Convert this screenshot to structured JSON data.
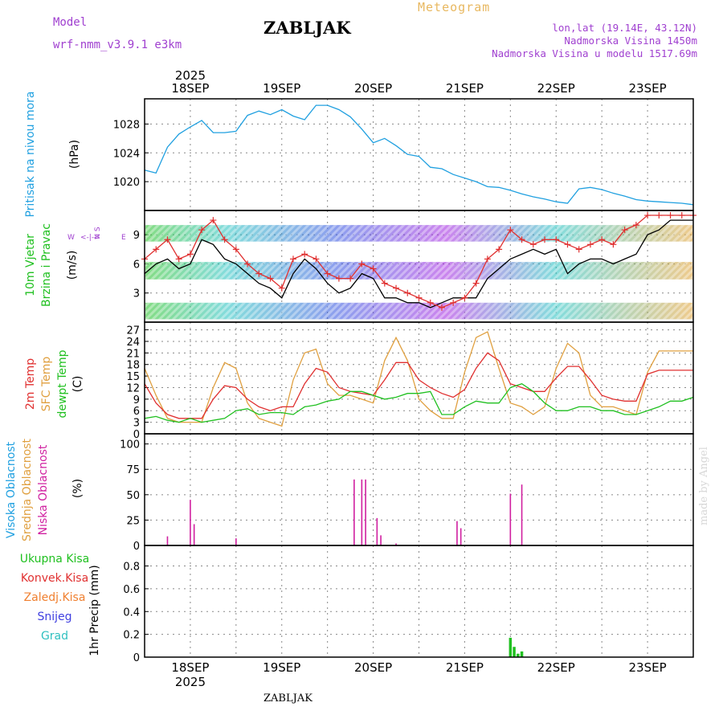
{
  "header": {
    "title": "ZABLJAK",
    "model_label": "Model",
    "model_name": "wrf-nmm_v3.9.1 e3km",
    "meteogram_label": "Meteogram",
    "location_coords": "lon,lat (19.14E, 43.12N)",
    "altitude": "Nadmorska Visina 1450m",
    "model_altitude": "Nadmorska Visina u modelu 1517.69m"
  },
  "footer": {
    "station": "ZABLJAK",
    "credit": "made by Angel"
  },
  "timeline": {
    "year": "2025",
    "days": [
      "18SEP",
      "19SEP",
      "20SEP",
      "21SEP",
      "22SEP",
      "23SEP"
    ],
    "start_hour_offset": -12,
    "end_hour_offset": 132
  },
  "chart_data": [
    {
      "type": "line",
      "name": "pressure",
      "ylabel_lines": [
        "Pritisak na nivou mora"
      ],
      "unit": "(hPa)",
      "yticks": [
        1020,
        1024,
        1028
      ],
      "ylim": [
        1016,
        1031.5
      ],
      "series": [
        {
          "name": "Pritisak na nivou mora",
          "color": "#20a0e0",
          "x": [
            -12,
            -9,
            -6,
            -3,
            0,
            3,
            6,
            9,
            12,
            15,
            18,
            21,
            24,
            27,
            30,
            33,
            36,
            39,
            42,
            45,
            48,
            51,
            54,
            57,
            60,
            63,
            66,
            69,
            72,
            75,
            78,
            81,
            84,
            87,
            90,
            93,
            96,
            99,
            102,
            105,
            108,
            111,
            114,
            117,
            120,
            123,
            126,
            129,
            132
          ],
          "y": [
            1021.6,
            1021.2,
            1024.8,
            1026.6,
            1027.6,
            1028.5,
            1026.8,
            1026.8,
            1027.0,
            1029.2,
            1029.8,
            1029.3,
            1030.0,
            1029.1,
            1028.6,
            1030.6,
            1030.6,
            1030.0,
            1029.0,
            1027.3,
            1025.4,
            1026.0,
            1025.0,
            1023.8,
            1023.5,
            1022.0,
            1021.8,
            1021.0,
            1020.5,
            1020.0,
            1019.3,
            1019.2,
            1018.8,
            1018.3,
            1017.9,
            1017.6,
            1017.2,
            1017.0,
            1019.0,
            1019.2,
            1018.9,
            1018.4,
            1018.0,
            1017.5,
            1017.3,
            1017.2,
            1017.1,
            1017.0,
            1016.8
          ]
        }
      ]
    },
    {
      "type": "line",
      "name": "wind",
      "ylabel_lines": [
        "10m Vjetar",
        "Brzina i Pravac"
      ],
      "unit": "(m/s)",
      "compass": {
        "w": "W",
        "e": "E",
        "arrow": "<-|->",
        "axis_letters": "N S"
      },
      "yticks": [
        3,
        6,
        9
      ],
      "ylim": [
        0,
        11.5
      ],
      "series": [
        {
          "name": "Brzina vjetra",
          "color": "#000000",
          "x": [
            -12,
            -9,
            -6,
            -3,
            0,
            3,
            6,
            9,
            12,
            15,
            18,
            21,
            24,
            27,
            30,
            33,
            36,
            39,
            42,
            45,
            48,
            51,
            54,
            57,
            60,
            63,
            66,
            69,
            72,
            75,
            78,
            81,
            84,
            87,
            90,
            93,
            96,
            99,
            102,
            105,
            108,
            111,
            114,
            117,
            120,
            123,
            126,
            129,
            132
          ],
          "y": [
            5.0,
            6.0,
            6.5,
            5.5,
            6.0,
            8.5,
            8.0,
            6.5,
            6.0,
            5.0,
            4.0,
            3.5,
            2.5,
            5.0,
            6.5,
            5.5,
            4.0,
            3.0,
            3.5,
            5.0,
            4.5,
            2.5,
            2.5,
            2.0,
            2.0,
            1.5,
            2.0,
            2.5,
            2.5,
            2.5,
            4.5,
            5.5,
            6.5,
            7.0,
            7.5,
            7.0,
            7.5,
            5.0,
            6.0,
            6.5,
            6.5,
            6.0,
            6.5,
            7.0,
            9.0,
            9.5,
            10.5,
            10.5,
            10.5
          ]
        },
        {
          "name": "Udari vjetra",
          "color": "#e03030",
          "marker": "+",
          "x": [
            -12,
            -9,
            -6,
            -3,
            0,
            3,
            6,
            9,
            12,
            15,
            18,
            21,
            24,
            27,
            30,
            33,
            36,
            39,
            42,
            45,
            48,
            51,
            54,
            57,
            60,
            63,
            66,
            69,
            72,
            75,
            78,
            81,
            84,
            87,
            90,
            93,
            96,
            99,
            102,
            105,
            108,
            111,
            114,
            117,
            120,
            123,
            126,
            129,
            132
          ],
          "y": [
            6.5,
            7.5,
            8.5,
            6.5,
            7.0,
            9.5,
            10.5,
            8.5,
            7.5,
            6.0,
            5.0,
            4.5,
            3.5,
            6.5,
            7.0,
            6.5,
            5.0,
            4.5,
            4.5,
            6.0,
            5.5,
            4.0,
            3.5,
            3.0,
            2.5,
            2.0,
            1.5,
            2.0,
            2.5,
            4.0,
            6.5,
            7.5,
            9.5,
            8.5,
            8.0,
            8.5,
            8.5,
            8.0,
            7.5,
            8.0,
            8.5,
            8.0,
            9.5,
            10.0,
            11.0,
            11.0,
            11.0,
            11.0,
            11.0
          ]
        }
      ]
    },
    {
      "type": "line",
      "name": "temperature",
      "ylabel_lines": [
        "2m Temp",
        "SFC Temp",
        "dewpt Temp"
      ],
      "unit": "(C)",
      "yticks": [
        0,
        3,
        6,
        9,
        12,
        15,
        18,
        21,
        24,
        27
      ],
      "ylim": [
        0,
        29
      ],
      "series": [
        {
          "name": "2m Temp",
          "color": "#e03030",
          "x": [
            -12,
            -9,
            -6,
            -3,
            0,
            3,
            6,
            9,
            12,
            15,
            18,
            21,
            24,
            27,
            30,
            33,
            36,
            39,
            42,
            45,
            48,
            51,
            54,
            57,
            60,
            63,
            66,
            69,
            72,
            75,
            78,
            81,
            84,
            87,
            90,
            93,
            96,
            99,
            102,
            105,
            108,
            111,
            114,
            117,
            120,
            123,
            126,
            129,
            132
          ],
          "y": [
            13.0,
            8.0,
            5.0,
            4.0,
            4.0,
            4.0,
            9.0,
            12.5,
            12.0,
            9.0,
            7.0,
            6.0,
            7.0,
            7.0,
            13.0,
            17.0,
            16.0,
            12.0,
            11.0,
            10.5,
            10.0,
            14.0,
            18.5,
            18.5,
            14.0,
            12.0,
            10.5,
            9.5,
            11.5,
            17.0,
            21.0,
            19.0,
            13.0,
            12.0,
            11.0,
            11.0,
            14.5,
            17.5,
            17.5,
            14.0,
            10.0,
            9.0,
            8.5,
            8.5,
            15.5,
            16.5,
            16.5,
            16.5,
            16.5
          ]
        },
        {
          "name": "SFC Temp",
          "color": "#e0a040",
          "x": [
            -12,
            -9,
            -6,
            -3,
            0,
            3,
            6,
            9,
            12,
            15,
            18,
            21,
            24,
            27,
            30,
            33,
            36,
            39,
            42,
            45,
            48,
            51,
            54,
            57,
            60,
            63,
            66,
            69,
            72,
            75,
            78,
            81,
            84,
            87,
            90,
            93,
            96,
            99,
            102,
            105,
            108,
            111,
            114,
            117,
            120,
            123,
            126,
            129,
            132
          ],
          "y": [
            17.0,
            10.0,
            4.0,
            3.0,
            3.0,
            3.0,
            12.0,
            18.5,
            17.0,
            8.0,
            4.0,
            3.0,
            2.0,
            14.0,
            21.0,
            22.0,
            13.0,
            10.0,
            10.0,
            9.0,
            8.0,
            19.0,
            25.0,
            19.0,
            9.0,
            6.0,
            4.0,
            4.0,
            16.0,
            25.0,
            26.5,
            17.0,
            8.0,
            7.0,
            5.0,
            7.0,
            17.0,
            23.5,
            21.0,
            10.0,
            7.0,
            7.0,
            6.0,
            5.0,
            16.0,
            21.5,
            21.5,
            21.5,
            21.5
          ]
        },
        {
          "name": "dewpt Temp",
          "color": "#20c020",
          "x": [
            -12,
            -9,
            -6,
            -3,
            0,
            3,
            6,
            9,
            12,
            15,
            18,
            21,
            24,
            27,
            30,
            33,
            36,
            39,
            42,
            45,
            48,
            51,
            54,
            57,
            60,
            63,
            66,
            69,
            72,
            75,
            78,
            81,
            84,
            87,
            90,
            93,
            96,
            99,
            102,
            105,
            108,
            111,
            114,
            117,
            120,
            123,
            126,
            129,
            132
          ],
          "y": [
            4.0,
            4.5,
            3.5,
            3.0,
            4.0,
            3.0,
            3.5,
            4.0,
            6.0,
            6.5,
            5.0,
            5.5,
            5.5,
            5.0,
            7.0,
            7.5,
            8.5,
            9.0,
            11.0,
            11.0,
            10.0,
            9.0,
            9.5,
            10.5,
            10.5,
            11.0,
            5.0,
            5.0,
            7.0,
            8.5,
            8.0,
            8.0,
            12.0,
            13.0,
            11.0,
            8.0,
            6.0,
            6.0,
            7.0,
            7.0,
            6.0,
            6.0,
            5.0,
            5.0,
            6.0,
            7.0,
            8.5,
            8.5,
            9.5
          ]
        }
      ]
    },
    {
      "type": "bar",
      "name": "cloud_cover",
      "ylabel_lines": [
        "Visoka Oblacnost",
        "Srednja Oblacnost",
        "Niska Oblacnost"
      ],
      "ylabel_colors": [
        "#20a0e0",
        "#e0a040",
        "#d020a0"
      ],
      "unit": "(%)",
      "yticks": [
        0,
        25,
        50,
        75,
        100
      ],
      "ylim": [
        0,
        110
      ],
      "series": [
        {
          "name": "Niska Oblacnost",
          "color": "#d020a0",
          "x": [
            -6,
            0,
            1,
            12,
            43,
            45,
            46,
            49,
            50,
            54,
            70,
            71,
            84,
            87
          ],
          "y": [
            9,
            45,
            21,
            7,
            65,
            65,
            65,
            27,
            10,
            2,
            24,
            17,
            51,
            60
          ]
        }
      ]
    },
    {
      "type": "bar",
      "name": "precipitation",
      "ylabel_lines": [
        "1hr Precip"
      ],
      "unit": "(mm)",
      "legend": [
        {
          "label": "Ukupna Kisa",
          "color": "#20c020"
        },
        {
          "label": "Konvek.Kisa",
          "color": "#e03030"
        },
        {
          "label": "Zaledj.Kisa",
          "color": "#f08030"
        },
        {
          "label": "Snijeg",
          "color": "#4040e0"
        },
        {
          "label": "Grad",
          "color": "#30c0c0"
        }
      ],
      "yticks": [
        0,
        0.2,
        0.4,
        0.6,
        0.8
      ],
      "ylim": [
        0,
        0.98
      ],
      "series": [
        {
          "name": "Ukupna Kisa",
          "color": "#20c020",
          "x": [
            84,
            85,
            86,
            87
          ],
          "y": [
            0.17,
            0.09,
            0.03,
            0.05
          ]
        }
      ]
    }
  ]
}
